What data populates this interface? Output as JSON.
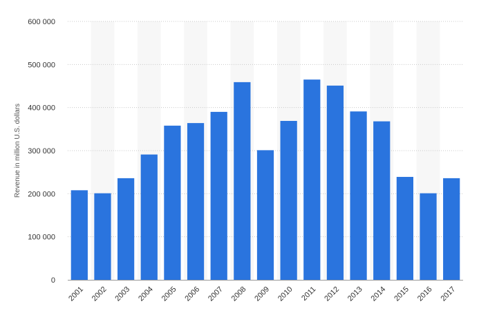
{
  "chart_data": {
    "type": "bar",
    "title": "",
    "xlabel": "",
    "ylabel": "Revenue in million U.S. dollars",
    "categories": [
      "2001",
      "2002",
      "2003",
      "2004",
      "2005",
      "2006",
      "2007",
      "2008",
      "2009",
      "2010",
      "2011",
      "2012",
      "2013",
      "2014",
      "2015",
      "2016",
      "2017"
    ],
    "values": [
      208000,
      201000,
      236000,
      291000,
      358000,
      364000,
      390000,
      459000,
      301000,
      369000,
      465000,
      451000,
      391000,
      368000,
      239000,
      201000,
      236000
    ],
    "ylim": [
      0,
      600000
    ],
    "yticks": [
      0,
      100000,
      200000,
      300000,
      400000,
      500000,
      600000
    ],
    "ytick_labels": [
      "0",
      "100 000",
      "200 000",
      "300 000",
      "400 000",
      "500 000",
      "600 000"
    ],
    "grid": true,
    "legend": "none",
    "colors": {
      "bar": "#2a74de",
      "band": "#f7f7f7",
      "grid": "#c8c8c8",
      "axis": "#999999"
    }
  }
}
